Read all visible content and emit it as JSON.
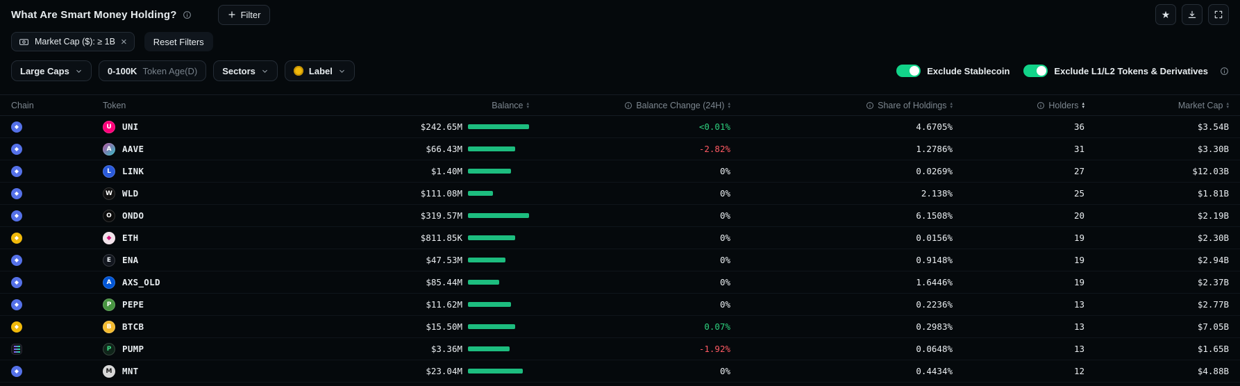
{
  "header": {
    "title": "What Are Smart Money Holding?",
    "filter_button_label": "Filter"
  },
  "filter_bar": {
    "chip_label": "Market Cap ($): ≥ 1B",
    "reset_label": "Reset Filters"
  },
  "controls": {
    "market_cap_dropdown": "Large Caps",
    "token_age_value": "0-100K",
    "token_age_suffix": "Token Age(D)",
    "sectors_dropdown": "Sectors",
    "label_dropdown": "Label",
    "toggles": [
      {
        "label": "Exclude Stablecoin",
        "on": true
      },
      {
        "label": "Exclude L1/L2 Tokens & Derivatives",
        "on": true
      }
    ]
  },
  "colors": {
    "accent_green": "#12d389",
    "bar_green": "#1dbd7f",
    "positive": "#2ed17e",
    "negative": "#ff5a63"
  },
  "icons": {
    "star-icon": "★",
    "close-icon": "×",
    "sort-up": "▴",
    "sort-down": "▾",
    "eth-diamond": "◆"
  },
  "table": {
    "columns": {
      "chain": "Chain",
      "token": "Token",
      "balance": "Balance",
      "change": "Balance Change (24H)",
      "share": "Share of Holdings",
      "holders": "Holders",
      "market_cap": "Market Cap"
    },
    "sort": {
      "column": "Holders",
      "direction": "desc"
    },
    "rows": [
      {
        "chain": "ethereum",
        "token": "UNI",
        "balance": "$242.65M",
        "bar": 92,
        "change": "<0.01%",
        "change_dir": "pos",
        "share": "4.6705%",
        "holders": "36",
        "market_cap": "$3.54B",
        "icon_bg": "#ff007a",
        "icon_fg": "#ffffff",
        "icon_glyph": "U"
      },
      {
        "chain": "ethereum",
        "token": "AAVE",
        "balance": "$66.43M",
        "bar": 71,
        "change": "-2.82%",
        "change_dir": "neg",
        "share": "1.2786%",
        "holders": "31",
        "market_cap": "$3.30B",
        "icon_bg": "linear-gradient(135deg,#b6509e,#2ebac6)",
        "icon_fg": "#ffffff",
        "icon_glyph": "A"
      },
      {
        "chain": "ethereum",
        "token": "LINK",
        "balance": "$1.40M",
        "bar": 65,
        "change": "0%",
        "change_dir": "neutral",
        "share": "0.0269%",
        "holders": "27",
        "market_cap": "$12.03B",
        "icon_bg": "#2a5ada",
        "icon_fg": "#ffffff",
        "icon_glyph": "L"
      },
      {
        "chain": "ethereum",
        "token": "WLD",
        "balance": "$111.08M",
        "bar": 38,
        "change": "0%",
        "change_dir": "neutral",
        "share": "2.138%",
        "holders": "25",
        "market_cap": "$1.81B",
        "icon_bg": "#101010",
        "icon_fg": "#ffffff",
        "icon_glyph": "W"
      },
      {
        "chain": "ethereum",
        "token": "ONDO",
        "balance": "$319.57M",
        "bar": 92,
        "change": "0%",
        "change_dir": "neutral",
        "share": "6.1508%",
        "holders": "20",
        "market_cap": "$2.19B",
        "icon_bg": "#0b0b0b",
        "icon_fg": "#ffffff",
        "icon_glyph": "O"
      },
      {
        "chain": "bnb",
        "token": "ETH",
        "balance": "$811.85K",
        "bar": 71,
        "change": "0%",
        "change_dir": "neutral",
        "share": "0.0156%",
        "holders": "19",
        "market_cap": "$2.30B",
        "icon_bg": "#f2e3eb",
        "icon_fg": "#d6197f",
        "icon_glyph": "◆"
      },
      {
        "chain": "ethereum",
        "token": "ENA",
        "balance": "$47.53M",
        "bar": 56,
        "change": "0%",
        "change_dir": "neutral",
        "share": "0.9148%",
        "holders": "19",
        "market_cap": "$2.94B",
        "icon_bg": "#12161e",
        "icon_fg": "#e8edf1",
        "icon_glyph": "E"
      },
      {
        "chain": "ethereum",
        "token": "AXS_OLD",
        "balance": "$85.44M",
        "bar": 47,
        "change": "0%",
        "change_dir": "neutral",
        "share": "1.6446%",
        "holders": "19",
        "market_cap": "$2.37B",
        "icon_bg": "#0055d5",
        "icon_fg": "#ffffff",
        "icon_glyph": "A"
      },
      {
        "chain": "ethereum",
        "token": "PEPE",
        "balance": "$11.62M",
        "bar": 65,
        "change": "0%",
        "change_dir": "neutral",
        "share": "0.2236%",
        "holders": "13",
        "market_cap": "$2.77B",
        "icon_bg": "#479440",
        "icon_fg": "#ffffff",
        "icon_glyph": "P"
      },
      {
        "chain": "bnb",
        "token": "BTCB",
        "balance": "$15.50M",
        "bar": 71,
        "change": "0.07%",
        "change_dir": "pos",
        "share": "0.2983%",
        "holders": "13",
        "market_cap": "$7.05B",
        "icon_bg": "#f3ba2f",
        "icon_fg": "#ffffff",
        "icon_glyph": "B"
      },
      {
        "chain": "solana",
        "token": "PUMP",
        "balance": "$3.36M",
        "bar": 62,
        "change": "-1.92%",
        "change_dir": "neg",
        "share": "0.0648%",
        "holders": "13",
        "market_cap": "$1.65B",
        "icon_bg": "#10251a",
        "icon_fg": "#3ddc84",
        "icon_glyph": "P"
      },
      {
        "chain": "ethereum",
        "token": "MNT",
        "balance": "$23.04M",
        "bar": 82,
        "change": "0%",
        "change_dir": "neutral",
        "share": "0.4434%",
        "holders": "12",
        "market_cap": "$4.88B",
        "icon_bg": "#d8d8d8",
        "icon_fg": "#1c1c1c",
        "icon_glyph": "M"
      }
    ]
  }
}
